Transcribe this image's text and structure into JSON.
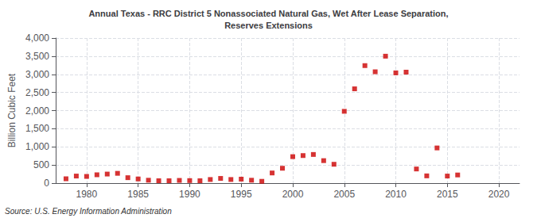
{
  "chart_data": {
    "type": "scatter",
    "title": "Annual Texas - RRC District 5 Nonassociated Natural Gas, Wet After Lease Separation,\nReserves Extensions",
    "ylabel": "Billion Cubic Feet",
    "source": "Source: U.S. Energy Information Administration",
    "color": "#cc0000",
    "marker": "square",
    "grid": true,
    "xlim": [
      1977,
      2022
    ],
    "ylim": [
      0,
      4000
    ],
    "xticks": [
      1980,
      1985,
      1990,
      1995,
      2000,
      2005,
      2010,
      2015,
      2020
    ],
    "yticks": [
      0,
      500,
      {
        "value": 1000,
        "label": "1,000"
      },
      {
        "value": 1500,
        "label": "1,500"
      },
      {
        "value": 2000,
        "label": "2,000"
      },
      {
        "value": 2500,
        "label": "2,500"
      },
      {
        "value": 3000,
        "label": "3,000"
      },
      {
        "value": 3500,
        "label": "3,500"
      },
      {
        "value": 4000,
        "label": "4,000"
      }
    ],
    "x": [
      1978,
      1979,
      1980,
      1981,
      1982,
      1983,
      1984,
      1985,
      1986,
      1987,
      1988,
      1989,
      1990,
      1991,
      1992,
      1993,
      1994,
      1995,
      1996,
      1997,
      1998,
      1999,
      2000,
      2001,
      2002,
      2003,
      2004,
      2005,
      2006,
      2007,
      2008,
      2009,
      2010,
      2011,
      2012,
      2013,
      2014,
      2015,
      2016
    ],
    "values": [
      120,
      195,
      185,
      230,
      250,
      270,
      150,
      115,
      80,
      65,
      65,
      75,
      70,
      65,
      100,
      130,
      100,
      110,
      80,
      50,
      280,
      410,
      730,
      760,
      790,
      620,
      520,
      1980,
      2600,
      3240,
      3070,
      3500,
      3040,
      3060,
      390,
      200,
      970,
      195,
      225
    ]
  }
}
